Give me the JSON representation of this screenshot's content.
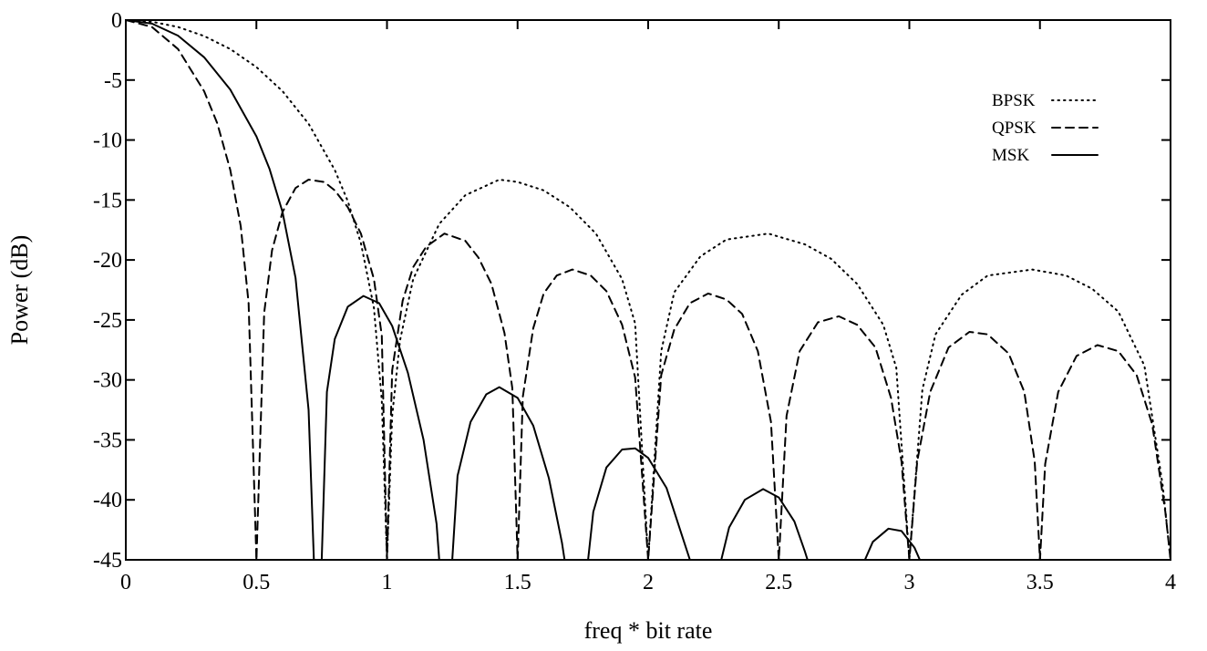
{
  "chart_data": {
    "type": "line",
    "title": "",
    "xlabel": "freq * bit rate",
    "ylabel": "Power (dB)",
    "xlim": [
      0,
      4
    ],
    "ylim": [
      -45,
      0
    ],
    "x_ticks": [
      "0",
      "0.5",
      "1",
      "1.5",
      "2",
      "2.5",
      "3",
      "3.5",
      "4"
    ],
    "y_ticks": [
      "0",
      "-5",
      "-10",
      "-15",
      "-20",
      "-25",
      "-30",
      "-35",
      "-40",
      "-45"
    ],
    "grid": false,
    "legend_position": "top-right",
    "series": [
      {
        "name": "BPSK",
        "style": "dotted",
        "points": [
          [
            0,
            0
          ],
          [
            0.1,
            -0.14
          ],
          [
            0.2,
            -0.58
          ],
          [
            0.3,
            -1.33
          ],
          [
            0.4,
            -2.42
          ],
          [
            0.5,
            -3.92
          ],
          [
            0.6,
            -5.93
          ],
          [
            0.7,
            -8.64
          ],
          [
            0.8,
            -12.5
          ],
          [
            0.85,
            -15.1
          ],
          [
            0.9,
            -18.6
          ],
          [
            0.95,
            -24.0
          ],
          [
            0.98,
            -31.7
          ],
          [
            1.0,
            -45
          ],
          [
            1.02,
            -33.0
          ],
          [
            1.05,
            -26.7
          ],
          [
            1.1,
            -21.6
          ],
          [
            1.2,
            -17.0
          ],
          [
            1.3,
            -14.6
          ],
          [
            1.43,
            -13.3
          ],
          [
            1.5,
            -13.5
          ],
          [
            1.6,
            -14.2
          ],
          [
            1.7,
            -15.6
          ],
          [
            1.8,
            -17.8
          ],
          [
            1.9,
            -21.6
          ],
          [
            1.95,
            -25.3
          ],
          [
            2.0,
            -45
          ],
          [
            2.05,
            -27.6
          ],
          [
            2.1,
            -22.7
          ],
          [
            2.2,
            -19.7
          ],
          [
            2.3,
            -18.3
          ],
          [
            2.46,
            -17.8
          ],
          [
            2.6,
            -18.7
          ],
          [
            2.7,
            -19.9
          ],
          [
            2.8,
            -22.0
          ],
          [
            2.9,
            -25.4
          ],
          [
            2.95,
            -29.0
          ],
          [
            3.0,
            -45
          ],
          [
            3.05,
            -30.8
          ],
          [
            3.1,
            -26.2
          ],
          [
            3.2,
            -22.9
          ],
          [
            3.3,
            -21.3
          ],
          [
            3.47,
            -20.8
          ],
          [
            3.6,
            -21.3
          ],
          [
            3.7,
            -22.4
          ],
          [
            3.8,
            -24.3
          ],
          [
            3.9,
            -28.8
          ],
          [
            3.97,
            -38.8
          ],
          [
            4.0,
            -45
          ]
        ]
      },
      {
        "name": "QPSK",
        "style": "dashed",
        "points": [
          [
            0,
            0
          ],
          [
            0.1,
            -0.58
          ],
          [
            0.2,
            -2.42
          ],
          [
            0.3,
            -5.93
          ],
          [
            0.35,
            -8.6
          ],
          [
            0.4,
            -12.5
          ],
          [
            0.44,
            -17.2
          ],
          [
            0.47,
            -23.6
          ],
          [
            0.5,
            -45
          ],
          [
            0.53,
            -24.4
          ],
          [
            0.56,
            -19.2
          ],
          [
            0.6,
            -16.0
          ],
          [
            0.65,
            -14.0
          ],
          [
            0.7,
            -13.3
          ],
          [
            0.76,
            -13.5
          ],
          [
            0.8,
            -14.2
          ],
          [
            0.85,
            -15.6
          ],
          [
            0.9,
            -17.8
          ],
          [
            0.95,
            -21.6
          ],
          [
            0.98,
            -26.3
          ],
          [
            1.0,
            -45
          ],
          [
            1.02,
            -29.2
          ],
          [
            1.06,
            -23.4
          ],
          [
            1.1,
            -20.6
          ],
          [
            1.15,
            -18.9
          ],
          [
            1.22,
            -17.8
          ],
          [
            1.3,
            -18.4
          ],
          [
            1.35,
            -19.8
          ],
          [
            1.4,
            -22.0
          ],
          [
            1.45,
            -26.1
          ],
          [
            1.48,
            -30.7
          ],
          [
            1.5,
            -45
          ],
          [
            1.52,
            -31.4
          ],
          [
            1.56,
            -25.7
          ],
          [
            1.6,
            -22.8
          ],
          [
            1.65,
            -21.3
          ],
          [
            1.71,
            -20.8
          ],
          [
            1.78,
            -21.3
          ],
          [
            1.84,
            -22.6
          ],
          [
            1.9,
            -25.4
          ],
          [
            1.95,
            -29.8
          ],
          [
            2.0,
            -45
          ],
          [
            2.05,
            -29.6
          ],
          [
            2.1,
            -25.8
          ],
          [
            2.16,
            -23.6
          ],
          [
            2.23,
            -22.8
          ],
          [
            2.3,
            -23.3
          ],
          [
            2.36,
            -24.5
          ],
          [
            2.42,
            -27.6
          ],
          [
            2.47,
            -33.5
          ],
          [
            2.5,
            -45
          ],
          [
            2.53,
            -33.0
          ],
          [
            2.58,
            -27.6
          ],
          [
            2.65,
            -25.2
          ],
          [
            2.73,
            -24.7
          ],
          [
            2.8,
            -25.4
          ],
          [
            2.87,
            -27.3
          ],
          [
            2.93,
            -31.5
          ],
          [
            2.97,
            -36.8
          ],
          [
            3.0,
            -45
          ],
          [
            3.03,
            -36.8
          ],
          [
            3.08,
            -31.0
          ],
          [
            3.15,
            -27.3
          ],
          [
            3.23,
            -26.0
          ],
          [
            3.3,
            -26.2
          ],
          [
            3.38,
            -27.8
          ],
          [
            3.44,
            -31.0
          ],
          [
            3.48,
            -36.8
          ],
          [
            3.5,
            -45
          ],
          [
            3.52,
            -37.0
          ],
          [
            3.57,
            -31.0
          ],
          [
            3.64,
            -28.0
          ],
          [
            3.72,
            -27.1
          ],
          [
            3.8,
            -27.6
          ],
          [
            3.87,
            -29.6
          ],
          [
            3.93,
            -33.7
          ],
          [
            3.98,
            -41.0
          ],
          [
            4.0,
            -45
          ]
        ]
      },
      {
        "name": "MSK",
        "style": "solid",
        "points": [
          [
            0,
            0
          ],
          [
            0.1,
            -0.3
          ],
          [
            0.2,
            -1.3
          ],
          [
            0.3,
            -3.1
          ],
          [
            0.4,
            -5.8
          ],
          [
            0.5,
            -9.7
          ],
          [
            0.55,
            -12.4
          ],
          [
            0.6,
            -16.0
          ],
          [
            0.65,
            -21.5
          ],
          [
            0.7,
            -32.5
          ],
          [
            0.72,
            -45
          ],
          [
            0.75,
            -45
          ],
          [
            0.77,
            -31.0
          ],
          [
            0.8,
            -26.6
          ],
          [
            0.85,
            -23.9
          ],
          [
            0.91,
            -23.0
          ],
          [
            0.97,
            -23.6
          ],
          [
            1.02,
            -25.5
          ],
          [
            1.08,
            -29.4
          ],
          [
            1.14,
            -35.0
          ],
          [
            1.19,
            -42.0
          ],
          [
            1.2,
            -45
          ],
          [
            1.25,
            -45
          ],
          [
            1.27,
            -38.0
          ],
          [
            1.32,
            -33.5
          ],
          [
            1.38,
            -31.2
          ],
          [
            1.43,
            -30.6
          ],
          [
            1.5,
            -31.5
          ],
          [
            1.56,
            -33.8
          ],
          [
            1.62,
            -38.2
          ],
          [
            1.67,
            -43.6
          ],
          [
            1.68,
            -45
          ],
          [
            1.77,
            -45
          ],
          [
            1.79,
            -41.0
          ],
          [
            1.84,
            -37.3
          ],
          [
            1.9,
            -35.8
          ],
          [
            1.95,
            -35.7
          ],
          [
            2.0,
            -36.5
          ],
          [
            2.07,
            -39.0
          ],
          [
            2.13,
            -43.0
          ],
          [
            2.16,
            -45
          ],
          [
            2.28,
            -45
          ],
          [
            2.31,
            -42.3
          ],
          [
            2.37,
            -40.0
          ],
          [
            2.44,
            -39.1
          ],
          [
            2.5,
            -39.8
          ],
          [
            2.56,
            -41.8
          ],
          [
            2.6,
            -44.3
          ],
          [
            2.61,
            -45
          ],
          [
            2.83,
            -45
          ],
          [
            2.86,
            -43.5
          ],
          [
            2.92,
            -42.4
          ],
          [
            2.97,
            -42.6
          ],
          [
            3.02,
            -44.0
          ],
          [
            3.04,
            -45
          ]
        ]
      }
    ]
  }
}
